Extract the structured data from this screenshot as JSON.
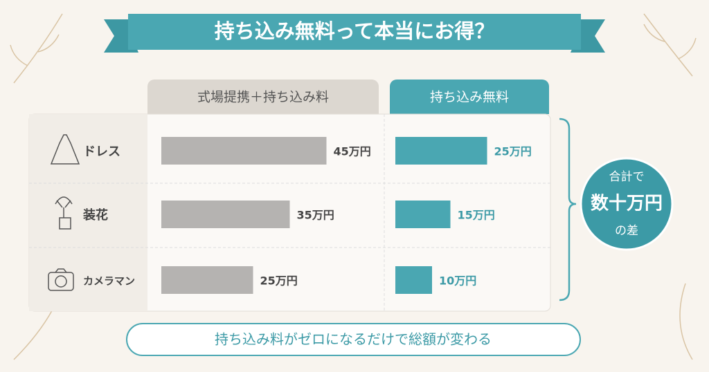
{
  "chart_data": {
    "type": "bar",
    "orientation": "horizontal",
    "title": "持ち込み無料って本当にお得？",
    "categories": [
      "ドレス",
      "装花",
      "カメラマン"
    ],
    "series": [
      {
        "name": "式場提携＋持ち込み料",
        "color": "#b5b3b1",
        "values": [
          45,
          35,
          25
        ],
        "value_labels": [
          "45万円",
          "35万円",
          "25万円"
        ]
      },
      {
        "name": "持ち込み無料",
        "color": "#4aa7b2",
        "values": [
          25,
          15,
          10
        ],
        "value_labels": [
          "25万円",
          "15万円",
          "10万円"
        ]
      }
    ],
    "annotation": [
      "合計で",
      "数十万円",
      "の差"
    ],
    "footnote": "持ち込み料がゼロになるだけで総額が変わる"
  }
}
